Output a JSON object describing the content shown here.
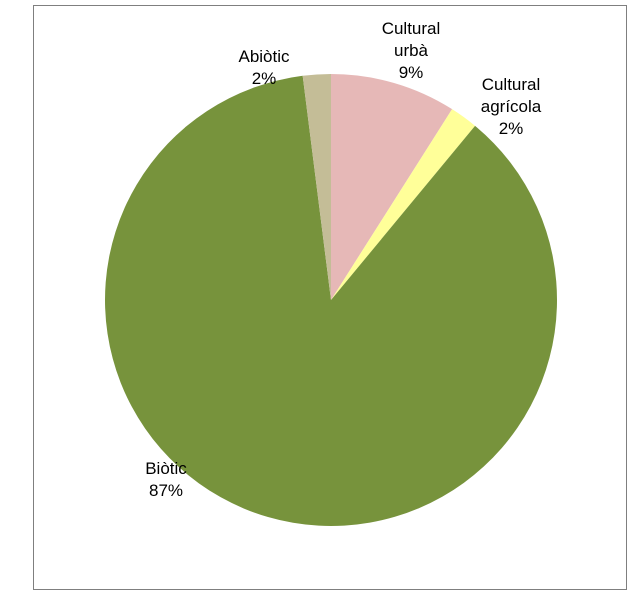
{
  "chart_data": {
    "type": "pie",
    "slices": [
      {
        "label_lines": [
          "Cultural",
          "urbà"
        ],
        "percent_label": "9%",
        "value": 9,
        "color": "#e6b8b7"
      },
      {
        "label_lines": [
          "Cultural",
          "agrícola"
        ],
        "percent_label": "2%",
        "value": 2,
        "color": "#ffff99"
      },
      {
        "label_lines": [
          "Biòtic"
        ],
        "percent_label": "87%",
        "value": 87,
        "color": "#77933c"
      },
      {
        "label_lines": [
          "Abiòtic"
        ],
        "percent_label": "2%",
        "value": 2,
        "color": "#c4bd97"
      }
    ],
    "start_angle_deg": 0,
    "direction": "clockwise",
    "legend": "none",
    "data_labels": "category-and-percent"
  }
}
